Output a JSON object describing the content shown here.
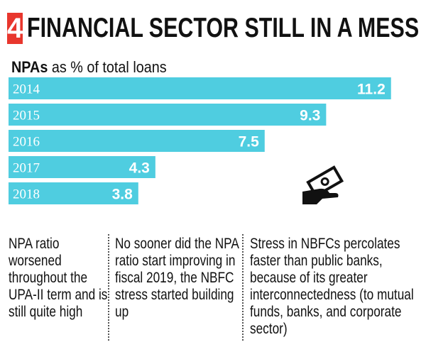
{
  "header": {
    "number": "4",
    "title": "FINANCIAL SECTOR STILL IN A MESS"
  },
  "subtitle": {
    "bold": "NPAs",
    "rest": " as % of total loans"
  },
  "colors": {
    "bar": "#4fcde0",
    "badge": "#e8362d",
    "label_text": "#ffffff"
  },
  "icon": "money-hand-icon",
  "chart_data": {
    "type": "bar",
    "orientation": "horizontal",
    "categories": [
      "2014",
      "2015",
      "2016",
      "2017",
      "2018"
    ],
    "values": [
      11.2,
      9.3,
      7.5,
      4.3,
      3.8
    ],
    "value_labels": [
      "11.2",
      "9.3",
      "7.5",
      "4.3",
      "3.8"
    ],
    "title": "FINANCIAL SECTOR STILL IN A MESS",
    "ylabel": "NPAs as % of total loans",
    "xlim": [
      0,
      11.6
    ],
    "grid": false,
    "legend": "none"
  },
  "notes": [
    "NPA ratio worsened throughout the UPA-II term and is still quite high",
    "No sooner did the NPA ratio start improving in fiscal 2019, the NBFC stress started building up",
    "Stress in NBFCs percolates faster than public banks, because of its greater interconnectedness (to mutual funds, banks, and corporate sector)"
  ]
}
